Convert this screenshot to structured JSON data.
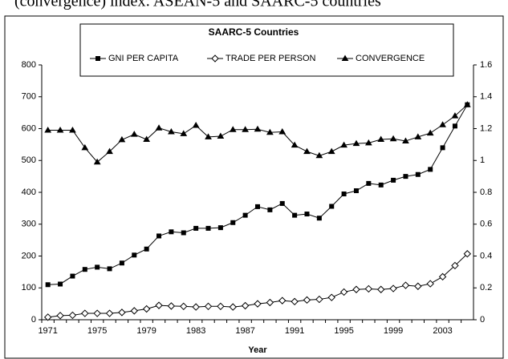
{
  "caption": "(convergence) index: ASEAN-5 and SAARC-5 countries",
  "chart_data": {
    "type": "line",
    "title": "SAARC-5 Countries",
    "x_label": "Year",
    "categories": [
      "1971",
      null,
      null,
      null,
      "1975",
      null,
      null,
      null,
      "1979",
      null,
      null,
      null,
      "1983",
      null,
      null,
      null,
      "1987",
      null,
      null,
      null,
      "1991",
      null,
      null,
      null,
      "1995",
      null,
      null,
      null,
      "1999",
      null,
      null,
      null,
      "2003",
      null,
      null
    ],
    "series": [
      {
        "name": "GNI PER CAPITA",
        "color": "#000000",
        "marker": "square",
        "values": [
          110,
          112,
          137,
          158,
          165,
          160,
          178,
          203,
          222,
          263,
          276,
          273,
          287,
          287,
          289,
          305,
          328,
          355,
          345,
          365,
          328,
          332,
          319,
          356,
          395,
          405,
          428,
          423,
          438,
          450,
          456,
          472,
          540,
          608,
          675
        ]
      },
      {
        "name": "TRADE PER PERSON",
        "color": "#000000",
        "marker": "diamond",
        "values": [
          8,
          13,
          14,
          20,
          20,
          20,
          23,
          28,
          34,
          45,
          43,
          42,
          40,
          42,
          42,
          40,
          44,
          50,
          54,
          60,
          57,
          62,
          64,
          70,
          87,
          95,
          97,
          95,
          98,
          108,
          105,
          113,
          135,
          170,
          207
        ]
      },
      {
        "name": "CONVERGENCE",
        "color": "#000000",
        "marker": "triangle",
        "axis": "y2",
        "values": [
          1.19,
          1.19,
          1.19,
          1.08,
          0.99,
          1.056,
          1.13,
          1.164,
          1.132,
          1.204,
          1.18,
          1.168,
          1.22,
          1.148,
          1.152,
          1.194,
          1.194,
          1.196,
          1.176,
          1.18,
          1.096,
          1.056,
          1.03,
          1.056,
          1.096,
          1.106,
          1.11,
          1.132,
          1.136,
          1.122,
          1.148,
          1.172,
          1.224,
          1.28,
          1.35
        ]
      }
    ],
    "ylim": [
      0,
      800
    ],
    "yticks": [
      0,
      100,
      200,
      300,
      400,
      500,
      600,
      700,
      800
    ],
    "y2lim": [
      0,
      1.6
    ],
    "y2ticks": [
      0,
      0.2,
      0.4,
      0.6,
      0.8,
      1,
      1.2,
      1.4,
      1.6
    ],
    "grid": false,
    "legend": "top"
  }
}
